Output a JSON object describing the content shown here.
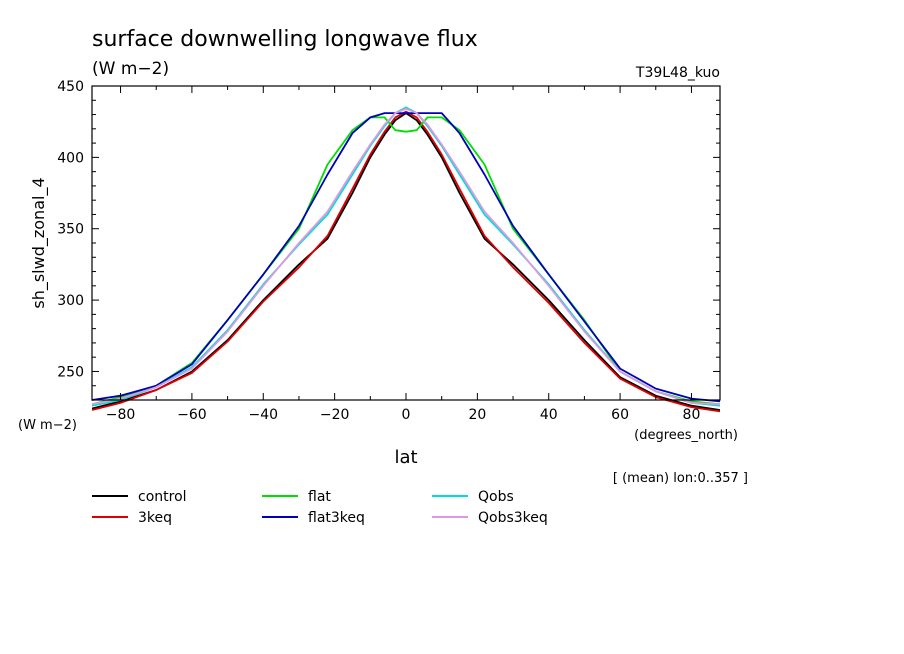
{
  "chart_data": {
    "type": "line",
    "title": "surface downwelling longwave flux",
    "subtitle": "(W m−2)",
    "run_label": "T39L48_kuo",
    "ylabel": "sh_slwd_zonal_4",
    "y_units": "(W m−2)",
    "xlabel": "lat",
    "x_units": "(degrees_north)",
    "footnote": "[ (mean) lon:0..357 ]",
    "xlim": [
      -88,
      88
    ],
    "ylim": [
      230,
      450
    ],
    "x_ticks": [
      -80,
      -60,
      -40,
      -20,
      0,
      20,
      40,
      60,
      80
    ],
    "x_tick_labels": [
      "−80",
      "−60",
      "−40",
      "−20",
      "0",
      "20",
      "40",
      "60",
      "80"
    ],
    "y_ticks": [
      250,
      300,
      350,
      400,
      450
    ],
    "y_tick_labels": [
      "250",
      "300",
      "350",
      "400",
      "450"
    ],
    "grid": false,
    "legend_position": "bottom",
    "x": [
      -88,
      -80,
      -70,
      -60,
      -50,
      -40,
      -30,
      -22,
      -15,
      -10,
      -6,
      -3,
      0,
      3,
      6,
      10,
      15,
      22,
      30,
      40,
      50,
      60,
      70,
      80,
      88
    ],
    "series": [
      {
        "name": "control",
        "color": "#000000",
        "values": [
          224,
          229,
          237,
          250,
          272,
          300,
          325,
          343,
          375,
          400,
          416,
          426,
          431,
          426,
          416,
          400,
          375,
          343,
          325,
          300,
          272,
          246,
          233,
          226,
          223
        ]
      },
      {
        "name": "3keq",
        "color": "#dd0000",
        "values": [
          223,
          228,
          237,
          249,
          271,
          299,
          323,
          345,
          378,
          402,
          418,
          428,
          432,
          428,
          418,
          402,
          378,
          345,
          323,
          298,
          270,
          245,
          232,
          225,
          222
        ]
      },
      {
        "name": "flat",
        "color": "#00dd00",
        "values": [
          227,
          232,
          240,
          256,
          286,
          318,
          350,
          395,
          419,
          428,
          428,
          419,
          418,
          419,
          428,
          428,
          419,
          395,
          350,
          318,
          286,
          250,
          236,
          229,
          227
        ]
      },
      {
        "name": "flat3keq",
        "color": "#0000bb",
        "values": [
          230,
          233,
          240,
          255,
          286,
          318,
          352,
          388,
          417,
          428,
          431,
          431,
          431,
          431,
          431,
          431,
          417,
          388,
          352,
          318,
          285,
          252,
          238,
          231,
          229
        ]
      },
      {
        "name": "Qobs",
        "color": "#00dddd",
        "values": [
          226,
          230,
          239,
          253,
          279,
          311,
          339,
          360,
          388,
          408,
          422,
          431,
          435,
          431,
          422,
          408,
          388,
          360,
          339,
          311,
          279,
          250,
          236,
          228,
          226
        ]
      },
      {
        "name": "Qobs3keq",
        "color": "#dd99dd",
        "values": [
          227,
          231,
          239,
          252,
          278,
          310,
          340,
          362,
          390,
          409,
          423,
          431,
          434,
          431,
          423,
          409,
          390,
          362,
          340,
          310,
          278,
          250,
          236,
          228,
          227
        ]
      }
    ]
  }
}
